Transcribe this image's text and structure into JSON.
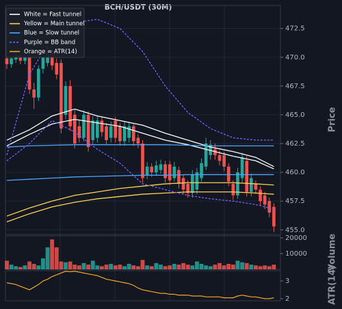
{
  "chart_data": [
    {
      "type": "candlestick",
      "title": "BCH/USDT (30M)",
      "y_label": "Price",
      "xlim": [
        -0.3,
        60.45
      ],
      "ylim": [
        454.6,
        474.5
      ],
      "yticks": [
        {
          "value": 455.0,
          "label": "455.0"
        },
        {
          "value": 457.5,
          "label": "457.5"
        },
        {
          "value": 460.0,
          "label": "460.0"
        },
        {
          "value": 462.5,
          "label": "462.5"
        },
        {
          "value": 465.0,
          "label": "465.0"
        },
        {
          "value": 467.5,
          "label": "467.5"
        },
        {
          "value": 470.0,
          "label": "470.0"
        },
        {
          "value": 472.5,
          "label": "472.5"
        }
      ],
      "grid": true,
      "legend": "upper left",
      "up_color": "#26a69a",
      "down_color": "#ef5350",
      "open": [
        469.9,
        469.4,
        469.8,
        470.2,
        469.7,
        470.0,
        467.2,
        466.5,
        469.0,
        469.5,
        470.5,
        469.5,
        469.5,
        465.0,
        467.5,
        465.0,
        464.0,
        463.0,
        465.0,
        462.8,
        463.0,
        464.5,
        464.0,
        463.0,
        464.5,
        464.0,
        462.7,
        463.0,
        464.0,
        463.0,
        462.5,
        459.8,
        460.5,
        460.0,
        460.2,
        460.7,
        460.7,
        459.5,
        460.2,
        459.5,
        459.0,
        458.2,
        458.5,
        459.5,
        460.5,
        461.5,
        462.0,
        461.5,
        461.5,
        460.5,
        459.0,
        458.0,
        459.5,
        461.0,
        458.3,
        459.0,
        458.5,
        458.0,
        457.5,
        457.0
      ],
      "high": [
        470.3,
        470.2,
        470.6,
        470.5,
        470.4,
        470.3,
        467.8,
        469.3,
        470.5,
        471.0,
        471.2,
        469.9,
        469.8,
        467.9,
        468.0,
        465.4,
        464.5,
        465.4,
        465.3,
        464.9,
        464.9,
        464.8,
        464.3,
        464.4,
        464.8,
        464.3,
        464.4,
        464.4,
        464.3,
        463.3,
        462.8,
        460.9,
        460.8,
        461.0,
        461.1,
        461.0,
        461.0,
        460.9,
        460.5,
        459.8,
        459.3,
        460.2,
        460.4,
        461.2,
        463.0,
        462.8,
        462.5,
        461.9,
        461.8,
        460.8,
        459.3,
        460.4,
        461.7,
        461.4,
        459.9,
        459.3,
        458.8,
        458.3,
        457.8,
        457.3
      ],
      "low": [
        469.0,
        469.1,
        469.5,
        469.4,
        469.4,
        466.8,
        465.5,
        466.2,
        468.6,
        469.2,
        468.9,
        468.1,
        463.4,
        464.6,
        463.6,
        462.1,
        462.6,
        462.7,
        461.8,
        462.4,
        462.6,
        463.1,
        462.4,
        462.6,
        462.6,
        462.3,
        462.3,
        462.6,
        462.3,
        462.1,
        459.1,
        459.4,
        459.6,
        459.7,
        459.9,
        459.1,
        458.9,
        459.2,
        458.6,
        458.1,
        457.8,
        457.8,
        458.1,
        459.2,
        460.2,
        461.1,
        461.1,
        460.6,
        460.1,
        458.8,
        457.6,
        457.7,
        459.1,
        457.9,
        457.9,
        458.1,
        457.1,
        456.8,
        456.1,
        454.8
      ],
      "close": [
        469.4,
        469.9,
        470.2,
        469.7,
        470.0,
        467.2,
        466.5,
        469.0,
        470.0,
        470.5,
        469.3,
        468.5,
        463.8,
        467.5,
        464.0,
        462.5,
        463.0,
        465.0,
        462.2,
        464.5,
        464.5,
        463.5,
        462.8,
        464.0,
        463.0,
        462.7,
        464.0,
        464.0,
        462.7,
        462.5,
        459.5,
        460.5,
        460.0,
        460.6,
        460.7,
        459.5,
        459.3,
        460.5,
        459.0,
        458.5,
        458.2,
        459.8,
        460.0,
        460.8,
        462.5,
        462.4,
        461.5,
        461.0,
        460.5,
        459.2,
        458.0,
        460.0,
        461.3,
        458.3,
        459.5,
        458.5,
        457.5,
        457.2,
        456.5,
        455.3
      ],
      "series": [
        {
          "name": "White = Fast tunnel",
          "color": "#ffffff",
          "x": [
            0,
            5,
            10,
            15,
            20,
            25,
            30,
            35,
            40,
            45,
            50,
            55,
            59
          ],
          "upper": [
            462.8,
            463.7,
            464.9,
            465.5,
            464.9,
            464.5,
            464.1,
            463.4,
            462.8,
            462.2,
            461.8,
            461.3,
            460.5
          ],
          "lower": [
            462.3,
            463.3,
            464.2,
            464.6,
            464.3,
            464.0,
            463.4,
            462.8,
            462.4,
            461.9,
            461.4,
            461.0,
            460.3
          ]
        },
        {
          "name": "Yellow = Main tunnel",
          "color": "#ffd54f",
          "x": [
            0,
            5,
            10,
            15,
            20,
            25,
            30,
            35,
            40,
            45,
            50,
            55,
            59
          ],
          "upper": [
            456.2,
            456.9,
            457.5,
            458.0,
            458.3,
            458.6,
            458.8,
            459.0,
            459.1,
            459.1,
            459.1,
            459.0,
            458.9
          ],
          "lower": [
            455.7,
            456.4,
            457.0,
            457.4,
            457.7,
            457.9,
            458.1,
            458.2,
            458.3,
            458.3,
            458.3,
            458.2,
            458.1
          ]
        },
        {
          "name": "Blue = Slow tunnel",
          "color": "#4da6ff",
          "x": [
            0,
            5,
            10,
            15,
            20,
            25,
            30,
            35,
            40,
            45,
            50,
            55,
            59
          ],
          "upper": [
            462.2,
            462.3,
            462.35,
            462.4,
            462.4,
            462.4,
            462.4,
            462.4,
            462.35,
            462.3,
            462.3,
            462.3,
            462.3
          ],
          "lower": [
            459.3,
            459.4,
            459.5,
            459.6,
            459.65,
            459.7,
            459.75,
            459.75,
            459.8,
            459.8,
            459.8,
            459.8,
            459.8
          ]
        },
        {
          "name": "Purple = BB band",
          "color": "#7b5cff",
          "dashed": true,
          "x": [
            0,
            5,
            10,
            15,
            20,
            25,
            30,
            35,
            40,
            45,
            50,
            55,
            59
          ],
          "upper": [
            461.5,
            468.5,
            471.8,
            473.0,
            473.3,
            472.5,
            470.5,
            467.5,
            465.2,
            463.8,
            463.0,
            462.8,
            462.8
          ],
          "lower": [
            461.0,
            462.5,
            464.5,
            463.5,
            462.0,
            460.8,
            459.0,
            458.5,
            458.0,
            457.7,
            457.5,
            457.2,
            456.8
          ]
        }
      ]
    },
    {
      "type": "bar",
      "y_label": "Volume",
      "ylim": [
        0,
        21300
      ],
      "yticks": [
        10000,
        20000
      ],
      "values": [
        5500,
        3000,
        2000,
        1500,
        2500,
        5000,
        3500,
        2500,
        7000,
        14000,
        19000,
        14000,
        5000,
        4500,
        5000,
        3000,
        2500,
        4000,
        3000,
        5500,
        2500,
        2000,
        3000,
        3500,
        2500,
        3000,
        2000,
        3500,
        2500,
        2000,
        6000,
        2500,
        2000,
        4000,
        3000,
        2000,
        2500,
        3500,
        3000,
        4000,
        3000,
        2500,
        5000,
        3500,
        2500,
        2000,
        3000,
        4000,
        2500,
        3500,
        3000,
        5500,
        4500,
        4000,
        3000,
        2500,
        2000,
        2500,
        2000,
        3000
      ]
    },
    {
      "type": "line",
      "y_label": "ATR(14)",
      "ylim": [
        1.88,
        3.58
      ],
      "yticks": [
        2,
        3
      ],
      "series": [
        {
          "name": "Orange = ATR(14)",
          "color": "#f5a623",
          "values": [
            2.9,
            2.85,
            2.8,
            2.7,
            2.6,
            2.5,
            2.65,
            2.8,
            3.0,
            3.1,
            3.25,
            3.35,
            3.45,
            3.55,
            3.52,
            3.55,
            3.5,
            3.45,
            3.4,
            3.35,
            3.3,
            3.2,
            3.1,
            3.05,
            3.0,
            2.95,
            2.9,
            2.85,
            2.75,
            2.6,
            2.5,
            2.45,
            2.4,
            2.35,
            2.3,
            2.3,
            2.25,
            2.25,
            2.2,
            2.2,
            2.2,
            2.15,
            2.15,
            2.15,
            2.1,
            2.1,
            2.1,
            2.1,
            2.05,
            2.05,
            2.05,
            2.15,
            2.2,
            2.15,
            2.1,
            2.1,
            2.05,
            2.0,
            2.0,
            2.05
          ]
        }
      ]
    }
  ]
}
